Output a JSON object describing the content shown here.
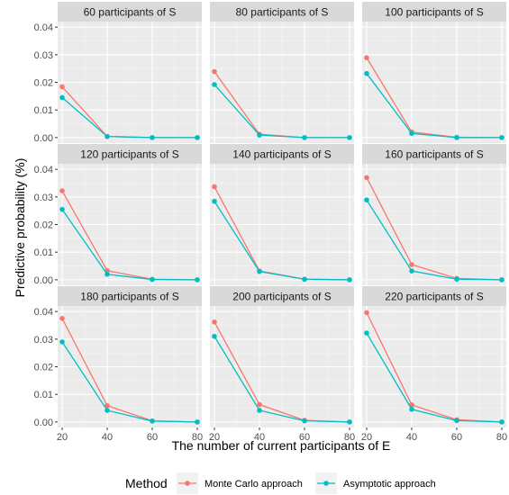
{
  "chart_data": {
    "type": "line",
    "facet_layout": "3x3 grid",
    "xlabel": "The number of current participants of E",
    "ylabel": "Predictive probability (%)",
    "x": [
      20,
      40,
      60,
      80
    ],
    "x_ticks": [
      "20",
      "40",
      "60",
      "80"
    ],
    "ylim": [
      -0.002,
      0.042
    ],
    "y_ticks": [
      "0.00",
      "0.01",
      "0.02",
      "0.03",
      "0.04"
    ],
    "y_tick_values": [
      0,
      0.01,
      0.02,
      0.03,
      0.04
    ],
    "grid": true,
    "legend": {
      "title": "Method",
      "position": "bottom",
      "items": [
        {
          "name": "Monte Carlo approach",
          "color": "#F8766D"
        },
        {
          "name": "Asymptotic approach",
          "color": "#00BFC4"
        }
      ]
    },
    "panels": [
      {
        "title": "60 participants of S",
        "series": [
          {
            "name": "Monte Carlo approach",
            "values": [
              0.0184,
              0.0004,
              0.0,
              0.0
            ]
          },
          {
            "name": "Asymptotic approach",
            "values": [
              0.0145,
              0.0004,
              0.0,
              0.0
            ]
          }
        ]
      },
      {
        "title": "80 participants of S",
        "series": [
          {
            "name": "Monte Carlo approach",
            "values": [
              0.0239,
              0.0012,
              0.0,
              0.0
            ]
          },
          {
            "name": "Asymptotic approach",
            "values": [
              0.0192,
              0.0009,
              0.0,
              0.0
            ]
          }
        ]
      },
      {
        "title": "100 participants of S",
        "series": [
          {
            "name": "Monte Carlo approach",
            "values": [
              0.0289,
              0.002,
              0.0001,
              0.0
            ]
          },
          {
            "name": "Asymptotic approach",
            "values": [
              0.0232,
              0.0015,
              0.0,
              0.0
            ]
          }
        ]
      },
      {
        "title": "120 participants of S",
        "series": [
          {
            "name": "Monte Carlo approach",
            "values": [
              0.0322,
              0.0033,
              0.0002,
              0.0
            ]
          },
          {
            "name": "Asymptotic approach",
            "values": [
              0.0255,
              0.002,
              0.0001,
              0.0
            ]
          }
        ]
      },
      {
        "title": "140 participants of S",
        "series": [
          {
            "name": "Monte Carlo approach",
            "values": [
              0.0337,
              0.0032,
              0.0002,
              0.0
            ]
          },
          {
            "name": "Asymptotic approach",
            "values": [
              0.0284,
              0.003,
              0.0002,
              0.0
            ]
          }
        ]
      },
      {
        "title": "160 participants of S",
        "series": [
          {
            "name": "Monte Carlo approach",
            "values": [
              0.037,
              0.0055,
              0.0005,
              0.0
            ]
          },
          {
            "name": "Asymptotic approach",
            "values": [
              0.0289,
              0.0032,
              0.0002,
              0.0
            ]
          }
        ]
      },
      {
        "title": "180 participants of S",
        "series": [
          {
            "name": "Monte Carlo approach",
            "values": [
              0.0375,
              0.0059,
              0.0004,
              0.0
            ]
          },
          {
            "name": "Asymptotic approach",
            "values": [
              0.029,
              0.0042,
              0.0003,
              0.0
            ]
          }
        ]
      },
      {
        "title": "200 participants of S",
        "series": [
          {
            "name": "Monte Carlo approach",
            "values": [
              0.0362,
              0.0063,
              0.0006,
              0.0
            ]
          },
          {
            "name": "Asymptotic approach",
            "values": [
              0.031,
              0.0042,
              0.0004,
              0.0
            ]
          }
        ]
      },
      {
        "title": "220 participants of S",
        "series": [
          {
            "name": "Monte Carlo approach",
            "values": [
              0.0396,
              0.0062,
              0.0008,
              0.0
            ]
          },
          {
            "name": "Asymptotic approach",
            "values": [
              0.0322,
              0.0046,
              0.0005,
              0.0
            ]
          }
        ]
      }
    ]
  }
}
